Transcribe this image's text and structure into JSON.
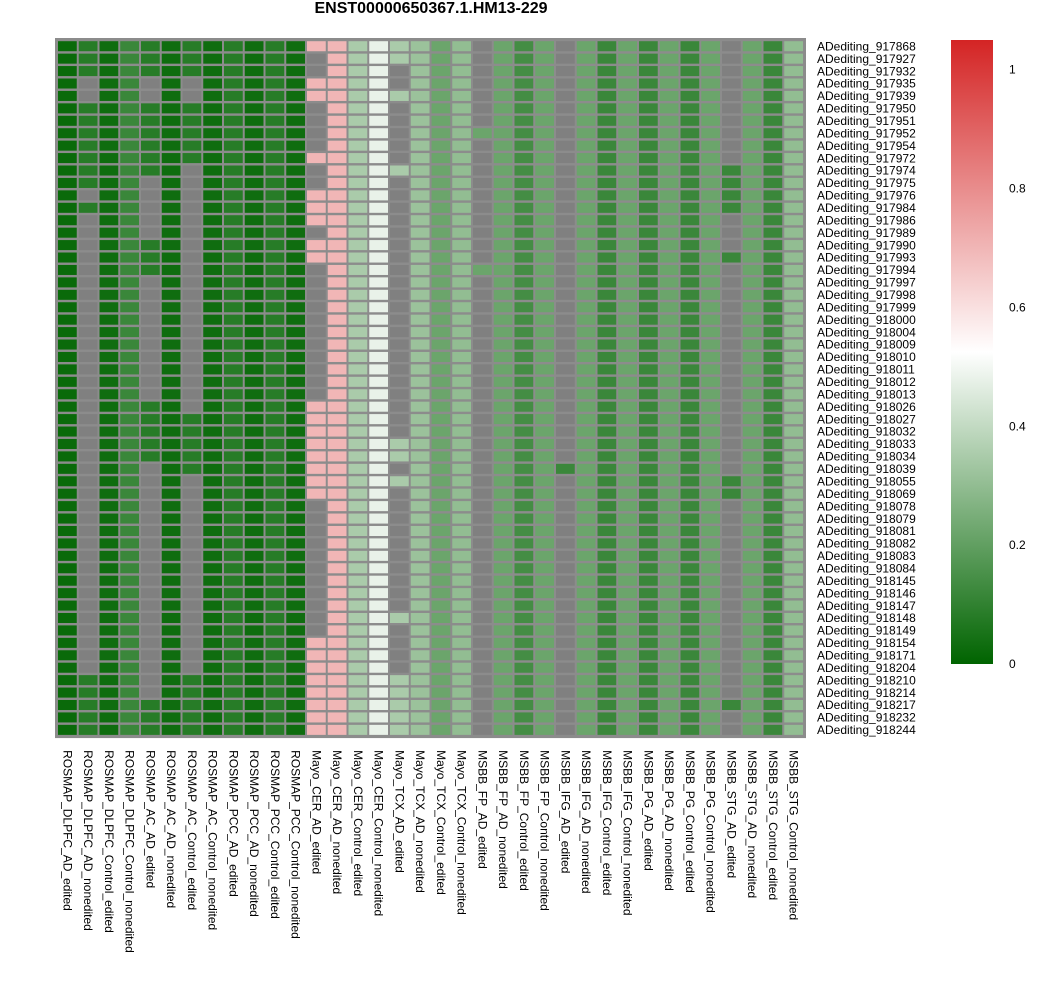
{
  "chart_data": {
    "type": "heatmap",
    "title": "ENST00000650367.1.HM13-229",
    "columns": [
      "ROSMAP_DLPFC_AD_edited",
      "ROSMAP_DLPFC_AD_nonedited",
      "ROSMAP_DLPFC_Control_edited",
      "ROSMAP_DLPFC_Control_nonedited",
      "ROSMAP_AC_AD_edited",
      "ROSMAP_AC_AD_nonedited",
      "ROSMAP_AC_Control_edited",
      "ROSMAP_AC_Control_nonedited",
      "ROSMAP_PCC_AD_edited",
      "ROSMAP_PCC_AD_nonedited",
      "ROSMAP_PCC_Control_edited",
      "ROSMAP_PCC_Control_nonedited",
      "Mayo_CER_AD_edited",
      "Mayo_CER_AD_nonedited",
      "Mayo_CER_Control_edited",
      "Mayo_CER_Control_nonedited",
      "Mayo_TCX_AD_edited",
      "Mayo_TCX_AD_nonedited",
      "Mayo_TCX_Control_edited",
      "Mayo_TCX_Control_nonedited",
      "MSBB_FP_AD_edited",
      "MSBB_FP_AD_nonedited",
      "MSBB_FP_Control_edited",
      "MSBB_FP_Control_nonedited",
      "MSBB_IFG_AD_edited",
      "MSBB_IFG_AD_nonedited",
      "MSBB_IFG_Control_edited",
      "MSBB_IFG_Control_nonedited",
      "MSBB_PG_AD_edited",
      "MSBB_PG_AD_nonedited",
      "MSBB_PG_Control_edited",
      "MSBB_PG_Control_nonedited",
      "MSBB_STG_AD_edited",
      "MSBB_STG_AD_nonedited",
      "MSBB_STG_Control_edited",
      "MSBB_STG_Control_nonedited"
    ],
    "rows": [
      "ADediting_917868",
      "ADediting_917927",
      "ADediting_917932",
      "ADediting_917935",
      "ADediting_917939",
      "ADediting_917950",
      "ADediting_917951",
      "ADediting_917952",
      "ADediting_917954",
      "ADediting_917972",
      "ADediting_917974",
      "ADediting_917975",
      "ADediting_917976",
      "ADediting_917984",
      "ADediting_917986",
      "ADediting_917989",
      "ADediting_917990",
      "ADediting_917993",
      "ADediting_917994",
      "ADediting_917997",
      "ADediting_917998",
      "ADediting_917999",
      "ADediting_918000",
      "ADediting_918004",
      "ADediting_918009",
      "ADediting_918010",
      "ADediting_918011",
      "ADediting_918012",
      "ADediting_918013",
      "ADediting_918026",
      "ADediting_918027",
      "ADediting_918032",
      "ADediting_918033",
      "ADediting_918034",
      "ADediting_918039",
      "ADediting_918055",
      "ADediting_918069",
      "ADediting_918078",
      "ADediting_918079",
      "ADediting_918081",
      "ADediting_918082",
      "ADediting_918083",
      "ADediting_918084",
      "ADediting_918145",
      "ADediting_918146",
      "ADediting_918147",
      "ADediting_918148",
      "ADediting_918149",
      "ADediting_918154",
      "ADediting_918171",
      "ADediting_918204",
      "ADediting_918210",
      "ADediting_918214",
      "ADediting_918217",
      "ADediting_918232",
      "ADediting_918244"
    ],
    "column_default_values": [
      0.02,
      0.08,
      0.03,
      0.12,
      0.08,
      0.03,
      0.08,
      0.03,
      0.08,
      0.03,
      0.08,
      0.03,
      0.7,
      0.7,
      0.35,
      0.48,
      0.35,
      0.32,
      0.22,
      0.3,
      0.22,
      0.22,
      0.14,
      0.22,
      0.12,
      0.22,
      0.12,
      0.22,
      0.12,
      0.22,
      0.12,
      0.22,
      0.12,
      0.22,
      0.12,
      0.3
    ],
    "missing_columns": {
      "ROSMAP_DLPFC_AD_edited": [],
      "ROSMAP_DLPFC_AD_nonedited": [
        3,
        4,
        12,
        14,
        15,
        16,
        17,
        18,
        19,
        20,
        21,
        22,
        23,
        24,
        25,
        26,
        27,
        28,
        29,
        30,
        31,
        32,
        33,
        34,
        35,
        36,
        37,
        38,
        39,
        40,
        41,
        42,
        43,
        44,
        45,
        46,
        47,
        48,
        49,
        50
      ],
      "ROSMAP_AC_AD_edited": [
        3,
        4,
        11,
        12,
        13,
        14,
        15,
        19,
        20,
        21,
        22,
        23,
        24,
        25,
        26,
        27,
        28,
        34,
        35,
        36,
        37,
        38,
        39,
        40,
        41,
        42,
        43,
        44,
        45,
        46,
        47,
        48,
        49,
        50,
        51,
        52
      ],
      "ROSMAP_AC_Control_edited": [
        3,
        4,
        10,
        11,
        12,
        13,
        14,
        15,
        16,
        17,
        18,
        19,
        20,
        21,
        22,
        23,
        24,
        25,
        26,
        27,
        28,
        29,
        35,
        36,
        37,
        38,
        39,
        40,
        41,
        42,
        43,
        44,
        45,
        46,
        47,
        48,
        49,
        50
      ],
      "Mayo_CER_AD_edited": [
        1,
        2,
        5,
        6,
        7,
        8,
        10,
        11,
        15,
        18,
        19,
        20,
        21,
        22,
        23,
        24,
        25,
        26,
        27,
        28,
        37,
        38,
        39,
        40,
        41,
        42,
        43,
        44,
        45,
        46,
        47
      ],
      "Mayo_TCX_AD_edited": [
        2,
        3,
        5,
        6,
        7,
        8,
        9,
        11,
        12,
        13,
        14,
        15,
        16,
        17,
        18,
        19,
        20,
        21,
        22,
        23,
        24,
        25,
        26,
        27,
        28,
        29,
        30,
        31,
        34,
        36,
        37,
        38,
        39,
        40,
        41,
        42,
        43,
        44,
        45,
        47,
        48,
        49,
        50
      ],
      "MSBB_FP_AD_edited": [
        0,
        1,
        2,
        3,
        4,
        5,
        6,
        8,
        9,
        10,
        11,
        12,
        13,
        14,
        15,
        16,
        17,
        19,
        20,
        21,
        22,
        23,
        24,
        25,
        26,
        27,
        28,
        29,
        30,
        31,
        32,
        33,
        34,
        35,
        36,
        37,
        38,
        39,
        40,
        41,
        42,
        43,
        44,
        45,
        46,
        47,
        48,
        49,
        50,
        51,
        52,
        53,
        54,
        55
      ],
      "MSBB_IFG_AD_edited": [
        0,
        1,
        2,
        3,
        4,
        5,
        6,
        7,
        8,
        9,
        10,
        11,
        12,
        13,
        14,
        15,
        16,
        17,
        18,
        19,
        20,
        21,
        22,
        23,
        24,
        25,
        26,
        27,
        28,
        29,
        30,
        31,
        32,
        33,
        35,
        36,
        37,
        38,
        39,
        40,
        41,
        42,
        43,
        44,
        45,
        46,
        47,
        48,
        49,
        50,
        51,
        52,
        53,
        54,
        55
      ],
      "MSBB_STG_AD_edited": [
        0,
        1,
        2,
        3,
        4,
        5,
        6,
        7,
        8,
        9,
        14,
        15,
        16,
        18,
        19,
        20,
        21,
        22,
        23,
        24,
        25,
        26,
        27,
        28,
        29,
        30,
        31,
        32,
        33,
        34,
        37,
        38,
        39,
        40,
        41,
        42,
        43,
        44,
        45,
        46,
        47,
        48,
        49,
        50,
        51,
        52,
        54,
        55
      ]
    },
    "color_scale": {
      "min": 0,
      "max": 1.05,
      "low_color": "#006400",
      "mid_color": "#ffffff",
      "high_color": "#d42424",
      "midpoint": 0.525,
      "ticks": [
        0,
        0.2,
        0.4,
        0.6,
        0.8,
        1
      ]
    },
    "missing_color": "#808080",
    "legend_position": "right"
  }
}
